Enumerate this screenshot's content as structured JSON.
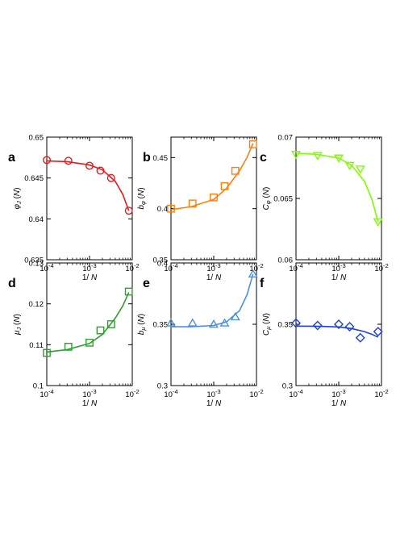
{
  "chart_data": [
    {
      "panel": "a",
      "type": "scatter",
      "color": "#e41a1c",
      "marker": "circle",
      "xscale": "log",
      "xlim": [
        0.0001,
        0.01
      ],
      "ylim": [
        0.635,
        0.65
      ],
      "xticks": [
        0.0001,
        0.001,
        0.01
      ],
      "xtick_labels": [
        "10^-4",
        "10^-3",
        "10^-2"
      ],
      "yticks": [
        0.635,
        0.64,
        0.645,
        0.65
      ],
      "ytick_labels": [
        "0.635",
        "0.64",
        "0.645",
        "0.65"
      ],
      "xlabel": "1/N",
      "ylabel": "φJ(N)",
      "ylabel_main": "φ",
      "ylabel_sub": "J",
      "ylabel_suffix": " (N)",
      "x": [
        0.0001,
        0.00032,
        0.001,
        0.0018,
        0.0032,
        0.0083
      ],
      "y": [
        0.6472,
        0.6471,
        0.6465,
        0.6459,
        0.645,
        0.641
      ],
      "fit": {
        "x": [
          0.0001,
          0.0003,
          0.001,
          0.002,
          0.004,
          0.006,
          0.0083
        ],
        "y": [
          0.6471,
          0.647,
          0.6466,
          0.646,
          0.6446,
          0.643,
          0.641
        ]
      }
    },
    {
      "panel": "b",
      "type": "scatter",
      "color": "#ff7f0e",
      "marker": "square",
      "xscale": "log",
      "xlim": [
        0.0001,
        0.01
      ],
      "ylim": [
        0.35,
        0.47
      ],
      "xticks": [
        0.0001,
        0.001,
        0.01
      ],
      "xtick_labels": [
        "10^-4",
        "10^-3",
        "10^-2"
      ],
      "yticks": [
        0.35,
        0.4,
        0.45
      ],
      "ytick_labels": [
        "0.35",
        "0.4",
        "0.45"
      ],
      "xlabel": "1/N",
      "ylabel": "bφ(N)",
      "ylabel_main": "b",
      "ylabel_sub": "φ",
      "ylabel_suffix": " (N)",
      "x": [
        0.0001,
        0.00032,
        0.001,
        0.0018,
        0.0032,
        0.0083
      ],
      "y": [
        0.4,
        0.405,
        0.411,
        0.422,
        0.437,
        0.463
      ],
      "fit": {
        "x": [
          0.0001,
          0.0003,
          0.001,
          0.002,
          0.004,
          0.006,
          0.0083
        ],
        "y": [
          0.399,
          0.402,
          0.409,
          0.42,
          0.437,
          0.45,
          0.464
        ]
      }
    },
    {
      "panel": "c",
      "type": "scatter",
      "color": "#7fff00",
      "marker": "triangle-down",
      "xscale": "log",
      "xlim": [
        0.0001,
        0.01
      ],
      "ylim": [
        0.06,
        0.07
      ],
      "xticks": [
        0.0001,
        0.001,
        0.01
      ],
      "xtick_labels": [
        "10^-4",
        "10^-3",
        "10^-2"
      ],
      "yticks": [
        0.06,
        0.065,
        0.07
      ],
      "ytick_labels": [
        "0.06",
        "0.065",
        "0.07"
      ],
      "xlabel": "1/N",
      "ylabel": "Cφ(N)",
      "ylabel_main": "C",
      "ylabel_sub": "φ",
      "ylabel_suffix": " (N)",
      "x": [
        0.0001,
        0.00032,
        0.001,
        0.0018,
        0.0032,
        0.0083
      ],
      "y": [
        0.0686,
        0.0685,
        0.0683,
        0.0677,
        0.0674,
        0.0631
      ],
      "fit": {
        "x": [
          0.0001,
          0.0003,
          0.001,
          0.002,
          0.004,
          0.006,
          0.0083
        ],
        "y": [
          0.0687,
          0.0686,
          0.0683,
          0.0677,
          0.0664,
          0.0649,
          0.0631
        ]
      }
    },
    {
      "panel": "d",
      "type": "scatter",
      "color": "#2ca02c",
      "marker": "square",
      "xscale": "log",
      "xlim": [
        0.0001,
        0.01
      ],
      "ylim": [
        0.1,
        0.13
      ],
      "xticks": [
        0.0001,
        0.001,
        0.01
      ],
      "xtick_labels": [
        "10^-4",
        "10^-3",
        "10^-2"
      ],
      "yticks": [
        0.1,
        0.11,
        0.12,
        0.13
      ],
      "ytick_labels": [
        "0.1",
        "0.11",
        "0.12",
        "0.13"
      ],
      "xlabel": "1/N",
      "ylabel": "μJ(N)",
      "ylabel_main": "μ",
      "ylabel_sub": "J",
      "ylabel_suffix": " (N)",
      "x": [
        0.0001,
        0.00032,
        0.001,
        0.0018,
        0.0032,
        0.0083
      ],
      "y": [
        0.108,
        0.1095,
        0.1105,
        0.1135,
        0.115,
        0.123
      ],
      "fit": {
        "x": [
          0.0001,
          0.0003,
          0.001,
          0.002,
          0.004,
          0.006,
          0.0083
        ],
        "y": [
          0.1082,
          0.1088,
          0.1103,
          0.1125,
          0.1165,
          0.1195,
          0.1228
        ]
      }
    },
    {
      "panel": "e",
      "type": "scatter",
      "color": "#4a90e2",
      "marker": "triangle-up",
      "xscale": "log",
      "xlim": [
        0.0001,
        0.01
      ],
      "ylim": [
        0.3,
        0.4
      ],
      "xticks": [
        0.0001,
        0.001,
        0.01
      ],
      "xtick_labels": [
        "10^-4",
        "10^-3",
        "10^-2"
      ],
      "yticks": [
        0.3,
        0.35,
        0.4
      ],
      "ytick_labels": [
        "0.3",
        "0.35",
        "0.4"
      ],
      "xlabel": "1/N",
      "ylabel": "bμ(N)",
      "ylabel_main": "b",
      "ylabel_sub": "μ",
      "ylabel_suffix": " (N)",
      "x": [
        0.0001,
        0.00032,
        0.001,
        0.0018,
        0.0032,
        0.0083
      ],
      "y": [
        0.351,
        0.351,
        0.35,
        0.351,
        0.356,
        0.391
      ],
      "fit": {
        "x": [
          0.0001,
          0.0003,
          0.001,
          0.002,
          0.004,
          0.006,
          0.0083
        ],
        "y": [
          0.348,
          0.348,
          0.349,
          0.352,
          0.361,
          0.374,
          0.391
        ]
      }
    },
    {
      "panel": "f",
      "type": "scatter",
      "color": "#1f3fdb",
      "marker": "diamond",
      "xscale": "log",
      "xlim": [
        0.0001,
        0.01
      ],
      "ylim": [
        0.3,
        0.4
      ],
      "xticks": [
        0.0001,
        0.001,
        0.01
      ],
      "xtick_labels": [
        "10^-4",
        "10^-3",
        "10^-2"
      ],
      "yticks": [
        0.3,
        0.35
      ],
      "ytick_labels": [
        "0.3",
        "0.35"
      ],
      "xlabel": "1/N",
      "ylabel": "Cμ(N)",
      "ylabel_main": "C",
      "ylabel_sub": "μ",
      "ylabel_suffix": " (N)",
      "x": [
        0.0001,
        0.00032,
        0.001,
        0.0018,
        0.0032,
        0.0083
      ],
      "y": [
        0.351,
        0.349,
        0.35,
        0.348,
        0.339,
        0.344
      ],
      "fit": {
        "x": [
          0.0001,
          0.0003,
          0.001,
          0.002,
          0.004,
          0.006,
          0.0083
        ],
        "y": [
          0.3485,
          0.3484,
          0.3478,
          0.3465,
          0.344,
          0.3418,
          0.3395
        ]
      }
    }
  ]
}
